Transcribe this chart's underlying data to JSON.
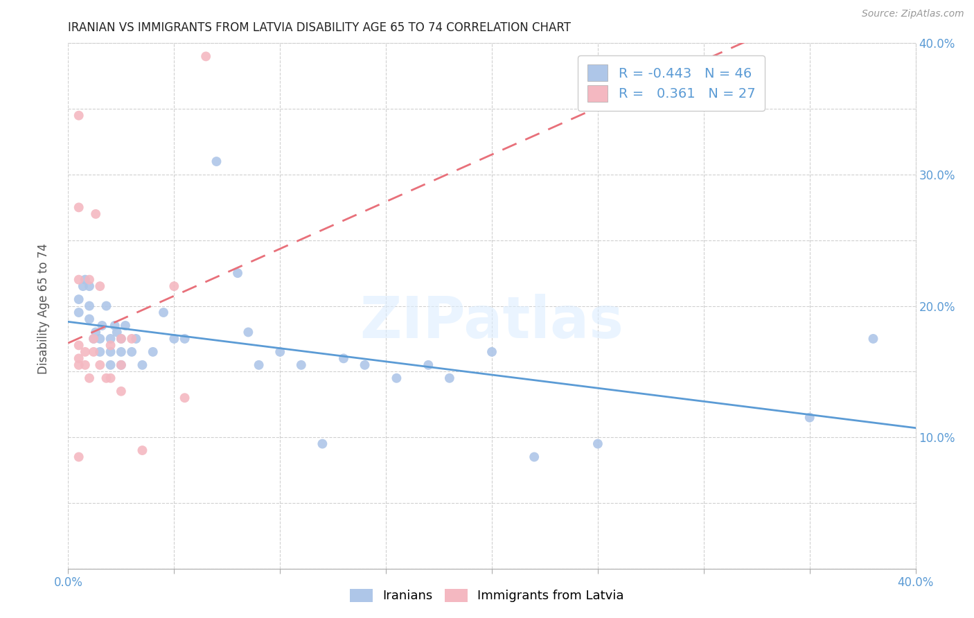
{
  "title": "IRANIAN VS IMMIGRANTS FROM LATVIA DISABILITY AGE 65 TO 74 CORRELATION CHART",
  "source": "Source: ZipAtlas.com",
  "ylabel": "Disability Age 65 to 74",
  "xlim": [
    0.0,
    0.4
  ],
  "ylim": [
    0.0,
    0.4
  ],
  "xticks": [
    0.0,
    0.05,
    0.1,
    0.15,
    0.2,
    0.25,
    0.3,
    0.35,
    0.4
  ],
  "yticks": [
    0.0,
    0.05,
    0.1,
    0.15,
    0.2,
    0.25,
    0.3,
    0.35,
    0.4
  ],
  "xtick_labels": [
    "0.0%",
    "",
    "",
    "",
    "",
    "",
    "",
    "",
    "40.0%"
  ],
  "ytick_labels": [
    "",
    "",
    "10.0%",
    "",
    "20.0%",
    "",
    "30.0%",
    "",
    "40.0%"
  ],
  "grid_color": "#d0d0d0",
  "background_color": "#ffffff",
  "watermark": "ZIPatlas",
  "legend_R1": "-0.443",
  "legend_N1": "46",
  "legend_R2": "0.361",
  "legend_N2": "27",
  "color_iranian": "#aec6e8",
  "color_latvia": "#f4b8c1",
  "color_line_iranian": "#5b9bd5",
  "color_line_latvia": "#e8707a",
  "iranians_x": [
    0.005,
    0.005,
    0.007,
    0.008,
    0.01,
    0.01,
    0.01,
    0.012,
    0.013,
    0.015,
    0.015,
    0.016,
    0.018,
    0.02,
    0.02,
    0.02,
    0.022,
    0.023,
    0.025,
    0.025,
    0.025,
    0.027,
    0.03,
    0.032,
    0.035,
    0.04,
    0.045,
    0.05,
    0.055,
    0.07,
    0.08,
    0.085,
    0.09,
    0.1,
    0.11,
    0.12,
    0.13,
    0.14,
    0.155,
    0.17,
    0.18,
    0.2,
    0.22,
    0.25,
    0.35,
    0.38
  ],
  "iranians_y": [
    0.195,
    0.205,
    0.215,
    0.22,
    0.19,
    0.2,
    0.215,
    0.175,
    0.18,
    0.165,
    0.175,
    0.185,
    0.2,
    0.155,
    0.165,
    0.175,
    0.185,
    0.18,
    0.155,
    0.165,
    0.175,
    0.185,
    0.165,
    0.175,
    0.155,
    0.165,
    0.195,
    0.175,
    0.175,
    0.31,
    0.225,
    0.18,
    0.155,
    0.165,
    0.155,
    0.095,
    0.16,
    0.155,
    0.145,
    0.155,
    0.145,
    0.165,
    0.085,
    0.095,
    0.115,
    0.175
  ],
  "latvia_x": [
    0.005,
    0.005,
    0.005,
    0.005,
    0.005,
    0.005,
    0.005,
    0.008,
    0.008,
    0.01,
    0.01,
    0.012,
    0.012,
    0.013,
    0.015,
    0.015,
    0.018,
    0.02,
    0.02,
    0.025,
    0.025,
    0.025,
    0.03,
    0.035,
    0.05,
    0.055,
    0.065
  ],
  "latvia_y": [
    0.085,
    0.155,
    0.16,
    0.17,
    0.22,
    0.275,
    0.345,
    0.155,
    0.165,
    0.145,
    0.22,
    0.165,
    0.175,
    0.27,
    0.155,
    0.215,
    0.145,
    0.145,
    0.17,
    0.135,
    0.155,
    0.175,
    0.175,
    0.09,
    0.215,
    0.13,
    0.39
  ],
  "marker_size": 100
}
